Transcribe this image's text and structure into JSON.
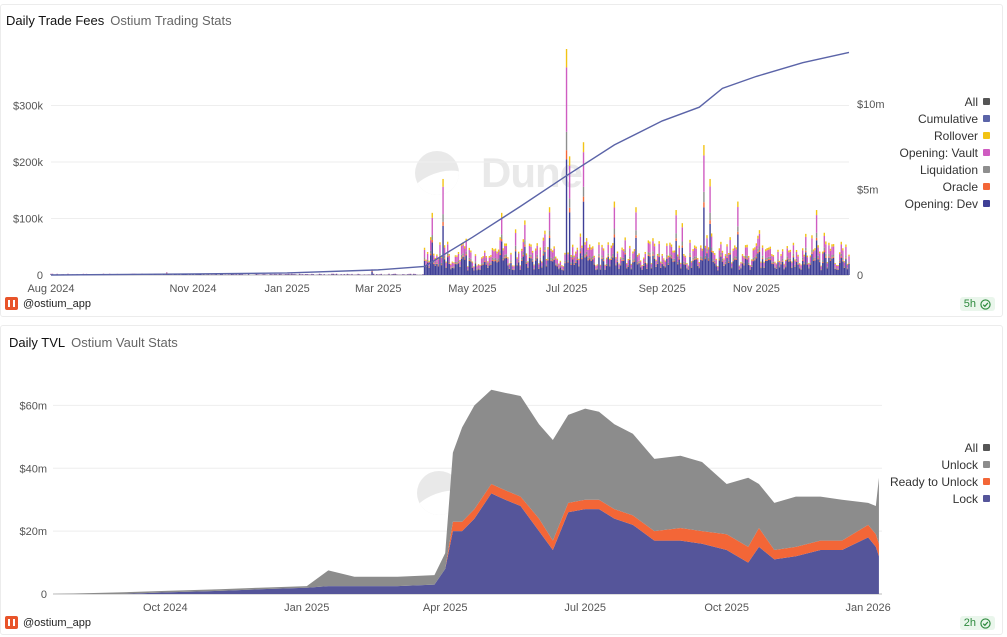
{
  "watermark": "Dune",
  "panels": [
    {
      "title": "Daily Trade Fees",
      "subtitle": "Ostium Trading Stats",
      "author": "@ostium_app",
      "refresh": "5h"
    },
    {
      "title": "Daily TVL",
      "subtitle": "Ostium Vault Stats",
      "author": "@ostium_app",
      "refresh": "2h"
    }
  ],
  "chart_data": [
    {
      "type": "bar",
      "stacked": true,
      "title": "Daily Trade Fees",
      "x_ticks": [
        "Aug 2024",
        "Nov 2024",
        "Jan 2025",
        "Mar 2025",
        "May 2025",
        "Jul 2025",
        "Sep 2025",
        "Nov 2025"
      ],
      "y_ticks": [
        "$300k",
        "$200k",
        "$100k",
        "0"
      ],
      "y2_ticks": [
        "$10m",
        "$5m",
        "0"
      ],
      "ylim": [
        0,
        400000
      ],
      "y2lim": [
        0,
        13200000
      ],
      "x_range": [
        "2024-08-01",
        "2025-12-31"
      ],
      "legend": {
        "placement": "right",
        "entries": [
          "All",
          "Cumulative",
          "Rollover",
          "Opening: Vault",
          "Liquidation",
          "Oracle",
          "Opening: Dev"
        ]
      },
      "colors": {
        "All": "#555555",
        "Cumulative": "#5b64a8",
        "Rollover": "#f2c314",
        "Opening: Vault": "#cf5cc1",
        "Liquidation": "#8e8e8e",
        "Oracle": "#f36637",
        "Opening: Dev": "#3f3f96"
      },
      "series_order": [
        "Opening: Dev",
        "Oracle",
        "Liquidation",
        "Opening: Vault",
        "Rollover"
      ],
      "spikes": [
        {
          "date": "2024-10-15",
          "total": 5000
        },
        {
          "date": "2025-02-25",
          "total": 10000
        },
        {
          "date": "2025-04-05",
          "total": 110000
        },
        {
          "date": "2025-04-12",
          "total": 170000
        },
        {
          "date": "2025-05-20",
          "total": 110000
        },
        {
          "date": "2025-06-20",
          "total": 120000
        },
        {
          "date": "2025-07-01",
          "total": 400000
        },
        {
          "date": "2025-07-03",
          "total": 210000
        },
        {
          "date": "2025-07-12",
          "total": 235000
        },
        {
          "date": "2025-08-01",
          "total": 130000
        },
        {
          "date": "2025-08-15",
          "total": 120000
        },
        {
          "date": "2025-09-10",
          "total": 115000
        },
        {
          "date": "2025-09-28",
          "total": 230000
        },
        {
          "date": "2025-10-02",
          "total": 170000
        },
        {
          "date": "2025-10-20",
          "total": 130000
        },
        {
          "date": "2025-12-10",
          "total": 115000
        }
      ],
      "cumulative": {
        "dates": [
          "2024-08-01",
          "2024-11-01",
          "2025-01-01",
          "2025-03-01",
          "2025-03-31",
          "2025-05-01",
          "2025-06-01",
          "2025-07-01",
          "2025-08-01",
          "2025-09-01",
          "2025-09-25",
          "2025-10-10",
          "2025-11-01",
          "2025-12-01",
          "2025-12-31"
        ],
        "values": [
          0,
          60000,
          120000,
          300000,
          500000,
          2200000,
          4000000,
          5800000,
          7600000,
          9000000,
          9800000,
          10900000,
          11600000,
          12400000,
          13000000
        ]
      }
    },
    {
      "type": "area",
      "stacked": true,
      "title": "Daily TVL",
      "x_ticks": [
        "Oct 2024",
        "Jan 2025",
        "Apr 2025",
        "Jul 2025",
        "Oct 2025",
        "Jan 2026"
      ],
      "y_ticks": [
        "$60m",
        "$40m",
        "$20m",
        "0"
      ],
      "ylim": [
        0,
        70000000
      ],
      "x_range": [
        "2024-07-20",
        "2026-01-10"
      ],
      "legend": {
        "placement": "right",
        "entries": [
          "All",
          "Unlock",
          "Ready to Unlock",
          "Lock"
        ]
      },
      "colors": {
        "All": "#555555",
        "Unlock": "#8c8c8c",
        "Ready to Unlock": "#f36637",
        "Lock": "#55559a"
      },
      "x": [
        "2024-07-20",
        "2024-09-01",
        "2024-10-01",
        "2024-11-05",
        "2024-12-01",
        "2025-01-01",
        "2025-01-15",
        "2025-02-01",
        "2025-03-01",
        "2025-03-25",
        "2025-04-01",
        "2025-04-06",
        "2025-04-12",
        "2025-04-20",
        "2025-05-01",
        "2025-05-10",
        "2025-05-20",
        "2025-06-01",
        "2025-06-10",
        "2025-06-20",
        "2025-07-01",
        "2025-07-10",
        "2025-07-20",
        "2025-08-01",
        "2025-08-15",
        "2025-09-01",
        "2025-09-15",
        "2025-10-01",
        "2025-10-15",
        "2025-10-22",
        "2025-11-01",
        "2025-11-15",
        "2025-12-01",
        "2025-12-15",
        "2026-01-01",
        "2026-01-06",
        "2026-01-08"
      ],
      "series": [
        {
          "name": "Lock",
          "values": [
            0,
            0,
            0.5,
            1,
            1.5,
            2,
            2.5,
            2.5,
            2.5,
            3,
            8,
            20,
            20,
            24,
            32,
            30,
            28,
            20,
            14,
            26,
            27,
            27,
            24,
            22,
            17,
            17,
            16,
            14,
            10,
            15,
            11,
            12,
            14,
            14,
            18,
            15,
            12
          ]
        },
        {
          "name": "Ready to Unlock",
          "values": [
            0,
            0,
            0,
            0,
            0,
            0,
            0,
            0,
            0,
            0,
            0,
            3,
            3,
            3,
            3,
            3,
            3,
            4,
            3,
            3,
            3,
            3,
            3,
            3,
            3,
            4,
            4,
            5,
            5,
            6,
            3,
            3,
            3,
            3,
            4,
            4,
            4
          ]
        },
        {
          "name": "Unlock",
          "values": [
            0,
            0.5,
            0.5,
            0.5,
            0.5,
            0.5,
            5,
            3,
            3,
            3,
            5,
            22,
            30,
            33,
            30,
            31,
            32,
            30,
            32,
            28,
            29,
            28,
            27,
            26,
            23,
            23,
            22,
            16,
            22,
            14,
            15,
            16,
            14,
            13,
            7,
            9,
            21
          ]
        }
      ]
    }
  ]
}
